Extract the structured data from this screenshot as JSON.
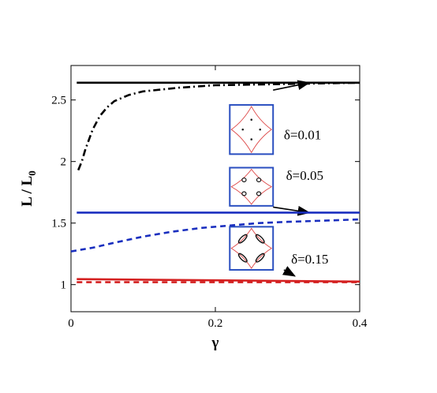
{
  "chart_data": {
    "type": "line",
    "xlabel": "γ",
    "ylabel": "L / L",
    "ylabel_sub": "0",
    "xlim": [
      0,
      0.4
    ],
    "ylim": [
      0.78,
      2.78
    ],
    "xticks": [
      0,
      0.2,
      0.4
    ],
    "xtick_labels": [
      "0",
      "0.2",
      "0.4"
    ],
    "yticks": [
      1,
      1.5,
      2,
      2.5
    ],
    "ytick_labels": [
      "1",
      "1.5",
      "2",
      "2.5"
    ],
    "series": [
      {
        "group": "δ=0.01",
        "color": "#000000",
        "style": "solid",
        "x": [
          0.008,
          0.05,
          0.1,
          0.2,
          0.3,
          0.4
        ],
        "y": [
          2.64,
          2.64,
          2.64,
          2.64,
          2.64,
          2.64
        ]
      },
      {
        "group": "δ=0.01",
        "color": "#000000",
        "style": "dashdot",
        "x": [
          0.01,
          0.015,
          0.02,
          0.03,
          0.04,
          0.05,
          0.06,
          0.08,
          0.1,
          0.15,
          0.2,
          0.3,
          0.4
        ],
        "y": [
          1.93,
          2.0,
          2.1,
          2.26,
          2.37,
          2.44,
          2.49,
          2.54,
          2.57,
          2.6,
          2.62,
          2.63,
          2.64
        ]
      },
      {
        "group": "δ=0.05",
        "color": "#1a2fbf",
        "style": "solid",
        "x": [
          0.008,
          0.1,
          0.2,
          0.3,
          0.4
        ],
        "y": [
          1.585,
          1.585,
          1.585,
          1.585,
          1.585
        ]
      },
      {
        "group": "δ=0.05",
        "color": "#1a2fbf",
        "style": "dashed",
        "x": [
          0.0,
          0.03,
          0.06,
          0.1,
          0.14,
          0.18,
          0.22,
          0.26,
          0.3,
          0.35,
          0.4
        ],
        "y": [
          1.27,
          1.3,
          1.34,
          1.39,
          1.43,
          1.46,
          1.48,
          1.5,
          1.51,
          1.52,
          1.53
        ]
      },
      {
        "group": "δ=0.15",
        "color": "#d42020",
        "style": "solid",
        "x": [
          0.008,
          0.1,
          0.2,
          0.3,
          0.4
        ],
        "y": [
          1.045,
          1.04,
          1.035,
          1.03,
          1.025
        ]
      },
      {
        "group": "δ=0.15",
        "color": "#d42020",
        "style": "dashed",
        "x": [
          0.008,
          0.1,
          0.2,
          0.3,
          0.4
        ],
        "y": [
          1.02,
          1.02,
          1.02,
          1.02,
          1.02
        ]
      }
    ],
    "annotations": [
      {
        "text": "δ=0.01",
        "x": 0.295,
        "y": 2.18
      },
      {
        "text": "δ=0.05",
        "x": 0.298,
        "y": 1.85
      },
      {
        "text": "δ=0.15",
        "x": 0.305,
        "y": 1.17
      }
    ],
    "insets": [
      {
        "label": "inset-delta-0.01",
        "x0": 0.22,
        "y0": 2.46,
        "x1": 0.28,
        "y1": 2.06,
        "arrow_to": [
          0.33,
          2.64
        ],
        "arrow_from": [
          0.28,
          2.58
        ]
      },
      {
        "label": "inset-delta-0.05",
        "x0": 0.22,
        "y0": 1.95,
        "x1": 0.28,
        "y1": 1.64,
        "arrow_to": [
          0.33,
          1.585
        ],
        "arrow_from": [
          0.28,
          1.63
        ]
      },
      {
        "label": "inset-delta-0.15",
        "x0": 0.22,
        "y0": 1.47,
        "x1": 0.28,
        "y1": 1.12,
        "arrow_to": [
          0.31,
          1.07
        ],
        "arrow_from": [
          0.295,
          1.12
        ]
      }
    ]
  }
}
